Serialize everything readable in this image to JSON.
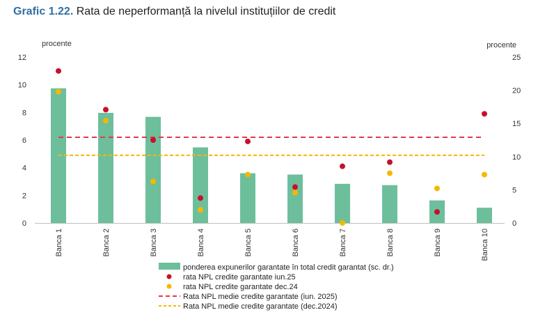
{
  "header": {
    "figure_number": "Grafic 1.22.",
    "title": "Rata de neperformanță la nivelul instituțiilor de credit"
  },
  "chart_data": {
    "type": "bar",
    "title": "Rata de neperformanță la nivelul instituțiilor de credit",
    "left_axis_label": "procente",
    "right_axis_label": "procente",
    "left_ylim": [
      0,
      12
    ],
    "left_ticks": [
      0,
      2,
      4,
      6,
      8,
      10,
      12
    ],
    "right_ylim": [
      0,
      25
    ],
    "right_ticks": [
      0,
      5,
      10,
      15,
      20,
      25
    ],
    "categories": [
      "Banca 1",
      "Banca 2",
      "Banca 3",
      "Banca 4",
      "Banca 5",
      "Banca 6",
      "Banca 7",
      "Banca 8",
      "Banca 9",
      "Banca 10"
    ],
    "bars": {
      "name": "ponderea expunerilor garantate în total credit garantat (sc. dr.)",
      "axis": "right",
      "color": "#6dbf9c",
      "values": [
        20.3,
        16.6,
        16.0,
        11.4,
        7.5,
        7.3,
        5.9,
        5.7,
        3.4,
        2.3
      ]
    },
    "points": [
      {
        "name": "rata NPL credite garantate iun.25",
        "axis": "left",
        "color": "#c8102e",
        "values": [
          11.0,
          8.2,
          6.0,
          1.8,
          5.9,
          2.6,
          4.1,
          4.4,
          0.8,
          7.9
        ]
      },
      {
        "name": "rata NPL credite garantate dec.24",
        "axis": "left",
        "color": "#f5b800",
        "values": [
          9.5,
          7.4,
          3.0,
          0.95,
          3.5,
          2.2,
          0.0,
          3.6,
          2.5,
          3.5
        ]
      }
    ],
    "lines": [
      {
        "name": "Rata NPL medie credite garantate (iun. 2025)",
        "axis": "left",
        "color": "#e63946",
        "value": 6.2
      },
      {
        "name": "Rata NPL medie credite garantate (dec.2024)",
        "axis": "left",
        "color": "#f5b800",
        "value": 4.9
      }
    ]
  }
}
